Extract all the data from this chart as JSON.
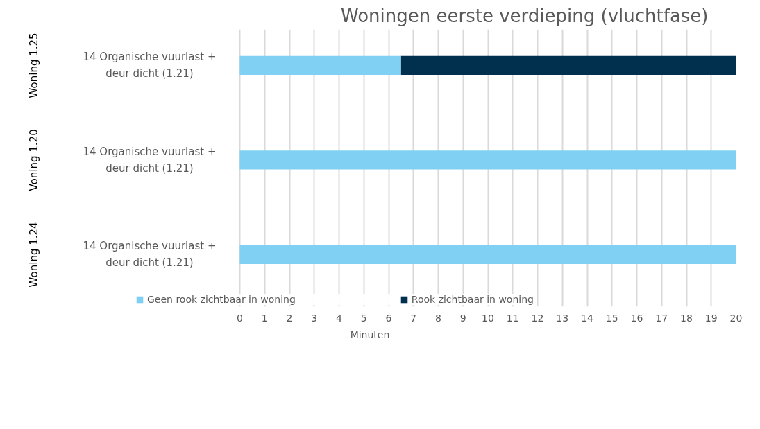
{
  "chart_data": {
    "type": "bar",
    "orientation": "horizontal",
    "stacked": true,
    "title": "Woningen eerste verdieping (vluchtfase)",
    "xlabel": "Minuten",
    "categories": [
      "14 Organische vuurlast + deur dicht (1.21)",
      "14 Organische vuurlast + deur dicht (1.21)",
      "14 Organische vuurlast + deur dicht (1.21)"
    ],
    "annotations": [
      "Woning 1.25",
      "Voning 1.20",
      "Woning 1.24"
    ],
    "series": [
      {
        "name": "Geen rook zichtbaar in woning",
        "color": "#7fd0f3",
        "values": [
          6.5,
          20,
          20
        ]
      },
      {
        "name": "Rook zichtbaar in woning",
        "color": "#00304e",
        "values": [
          13.5,
          0,
          0
        ]
      }
    ],
    "xlim": [
      0,
      20
    ],
    "xticks": [
      0,
      1,
      2,
      3,
      4,
      5,
      6,
      7,
      8,
      9,
      10,
      11,
      12,
      13,
      14,
      15,
      16,
      17,
      18,
      19,
      20
    ],
    "grid": "x",
    "legend": "bottom"
  }
}
